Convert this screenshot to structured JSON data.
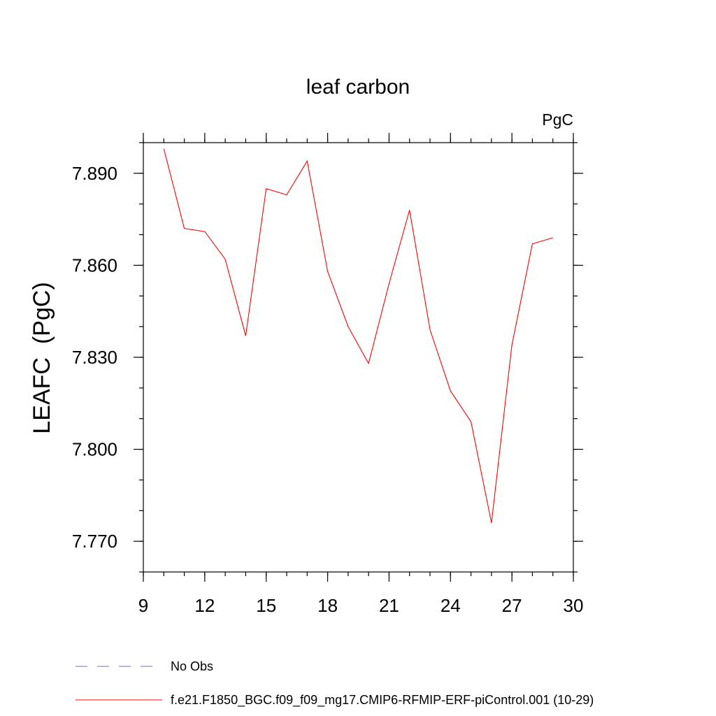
{
  "chart_data": {
    "type": "line",
    "title": "leaf carbon",
    "units_label": "PgC",
    "xlabel": "",
    "ylabel": "LEAFC  (PgC)",
    "xlim": [
      9,
      30
    ],
    "ylim": [
      7.76,
      7.9
    ],
    "x_ticks": [
      9,
      12,
      15,
      18,
      21,
      24,
      27,
      30
    ],
    "x_tick_labels": [
      "9",
      "12",
      "15",
      "18",
      "21",
      "24",
      "27",
      "30"
    ],
    "x_minor_step": 1,
    "y_ticks": [
      7.77,
      7.8,
      7.83,
      7.86,
      7.89
    ],
    "y_tick_labels": [
      "7.770",
      "7.800",
      "7.830",
      "7.860",
      "7.890"
    ],
    "y_minor_step": 0.01,
    "grid": false,
    "legend_position": "bottom-left",
    "legend": [
      {
        "label": "No Obs",
        "color": "#7b68c8",
        "style": "dashed"
      },
      {
        "label": "f.e21.F1850_BGC.f09_f09_mg17.CMIP6-RFMIP-ERF-piControl.001 (10-29)",
        "color": "#ff0000",
        "style": "solid"
      }
    ],
    "series": [
      {
        "name": "f.e21.F1850_BGC.f09_f09_mg17.CMIP6-RFMIP-ERF-piControl.001 (10-29)",
        "color": "#ff0000",
        "x": [
          10,
          11,
          12,
          13,
          14,
          15,
          16,
          17,
          18,
          19,
          20,
          21,
          22,
          23,
          24,
          25,
          26,
          27,
          28,
          29
        ],
        "values": [
          7.898,
          7.872,
          7.871,
          7.862,
          7.837,
          7.885,
          7.883,
          7.894,
          7.858,
          7.84,
          7.828,
          7.854,
          7.878,
          7.839,
          7.819,
          7.809,
          7.776,
          7.834,
          7.867,
          7.869
        ]
      }
    ]
  }
}
